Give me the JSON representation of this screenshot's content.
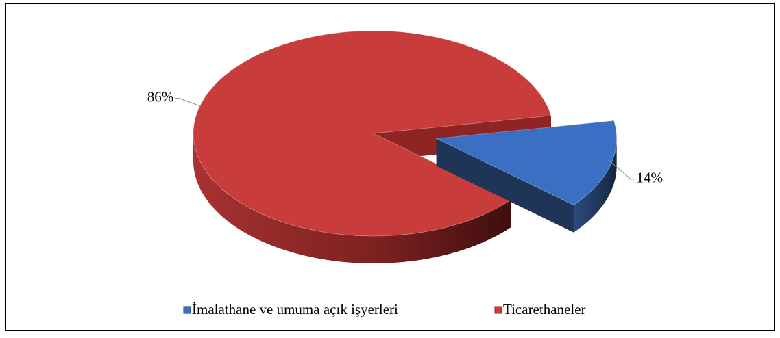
{
  "chart_data": {
    "type": "pie3d",
    "categories": [
      "İmalathane ve umuma açık işyerleri",
      "Ticarethaneler"
    ],
    "values": [
      14,
      86
    ],
    "value_labels": [
      "14%",
      "86%"
    ],
    "colors": [
      "#3b6fc3",
      "#c83c3b"
    ],
    "legend": "bottom"
  }
}
